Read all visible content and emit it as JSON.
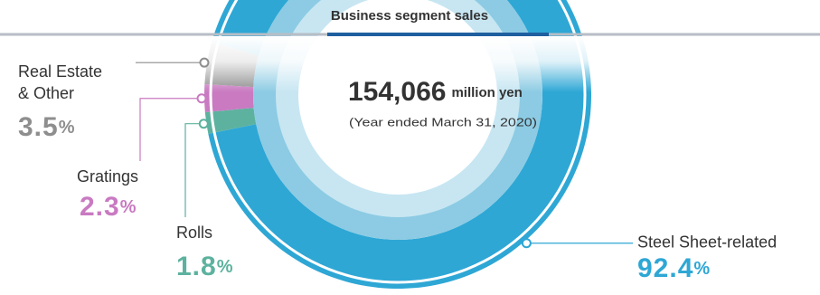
{
  "chart_data": {
    "type": "pie",
    "title": "Business segment sales",
    "total": {
      "value": 154066,
      "label": "154,066"
    },
    "total_unit": "million yen",
    "subtitle": "(Year ended March 31, 2020)",
    "categories": [
      "Steel Sheet-related",
      "Rolls",
      "Gratings",
      "Real Estate\n& Other"
    ],
    "values": [
      92.4,
      1.8,
      2.3,
      3.5
    ],
    "unit": "%",
    "colors": [
      "#2ea7d5",
      "#5db29f",
      "#c97ac1",
      "#8e8e8e"
    ]
  }
}
